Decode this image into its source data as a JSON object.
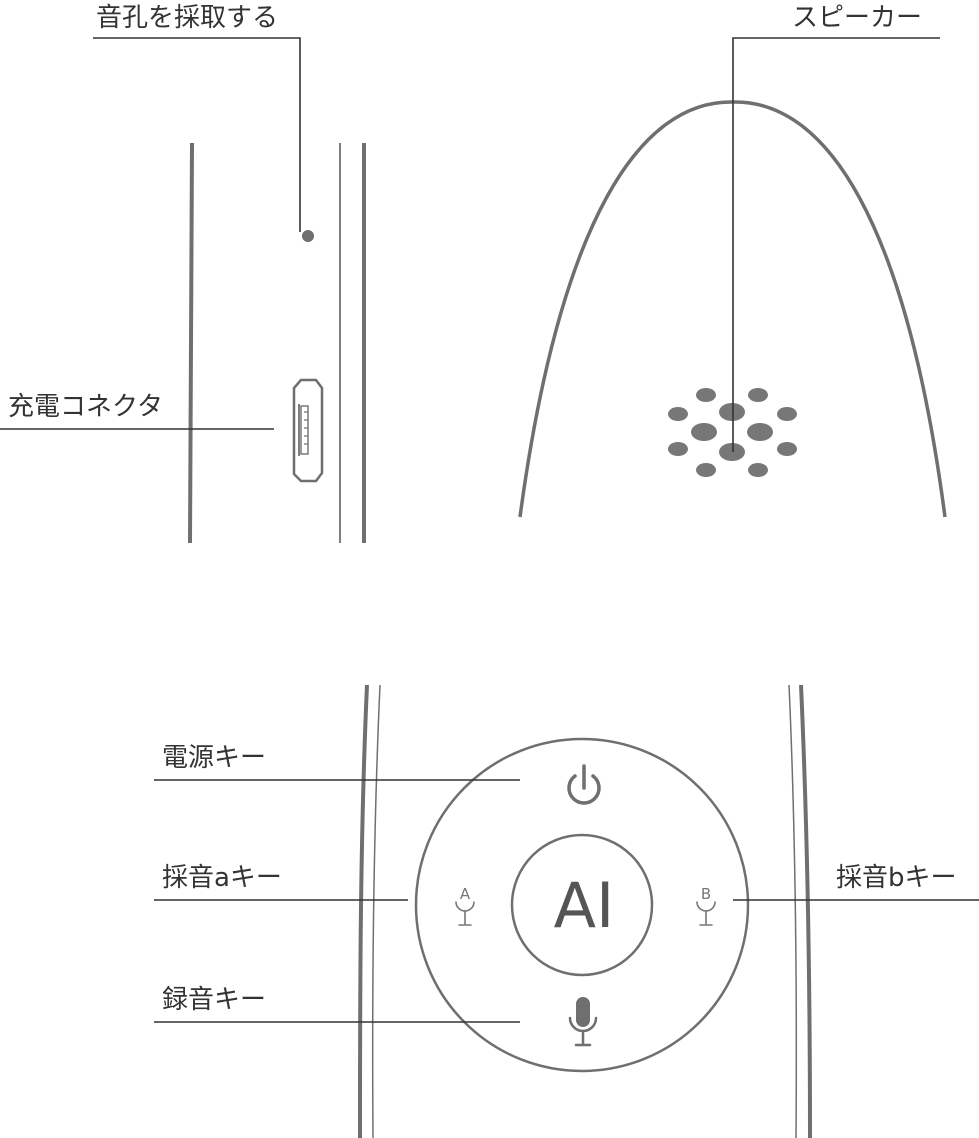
{
  "labels": {
    "mic_hole": "音孔を採取する",
    "speaker": "スピーカー",
    "charge_connector": "充電コネクタ",
    "power_key": "電源キー",
    "record_a_key": "採音aキー",
    "record_b_key": "採音bキー",
    "record_key": "録音キー"
  },
  "buttons": {
    "ai": "AI",
    "mic_a_letter": "A",
    "mic_b_letter": "B"
  },
  "colors": {
    "outline": "#6f6f6f",
    "dots": "#777777",
    "leader": "#333333",
    "text": "#333333"
  },
  "icons": [
    "power-icon",
    "microphone-a-icon",
    "microphone-b-icon",
    "microphone-icon",
    "micro-usb-port-icon"
  ]
}
